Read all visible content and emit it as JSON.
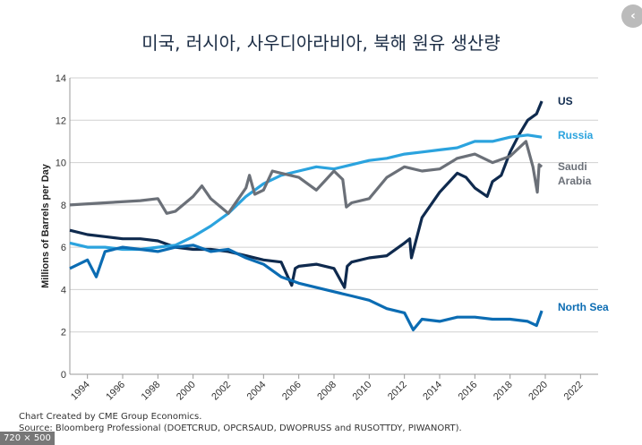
{
  "chart_data": {
    "type": "line",
    "title": "미국, 러시아, 사우디아라비아, 북해 원유 생산량",
    "xlabel": "",
    "ylabel": "Millions of Barrels per Day",
    "ylim": [
      0,
      14
    ],
    "xlim": [
      1993,
      2023
    ],
    "yticks": [
      "0",
      "2",
      "4",
      "6",
      "8",
      "10",
      "12",
      "14"
    ],
    "xticks": [
      "1994",
      "1996",
      "1998",
      "2000",
      "2002",
      "2004",
      "2006",
      "2008",
      "2010",
      "2012",
      "2014",
      "2016",
      "2018",
      "2020",
      "2022"
    ],
    "grid": true,
    "series": [
      {
        "name": "US",
        "color": "#0f2a4e",
        "label_lines": [
          "US"
        ],
        "x": [
          1993,
          1994,
          1995,
          1996,
          1997,
          1998,
          1999,
          2000,
          2001,
          2002,
          2003,
          2004,
          2005,
          2005.6,
          2005.8,
          2006,
          2007,
          2008,
          2008.6,
          2008.75,
          2009,
          2010,
          2011,
          2012,
          2012.3,
          2012.4,
          2013,
          2014,
          2015,
          2015.5,
          2016,
          2016.7,
          2017,
          2017.5,
          2018,
          2018.5,
          2019,
          2019.5,
          2019.8
        ],
        "y": [
          6.8,
          6.6,
          6.5,
          6.4,
          6.4,
          6.3,
          6.0,
          5.9,
          5.9,
          5.8,
          5.6,
          5.4,
          5.3,
          4.2,
          5.0,
          5.1,
          5.2,
          5.0,
          4.1,
          5.1,
          5.3,
          5.5,
          5.6,
          6.2,
          6.4,
          5.5,
          7.4,
          8.6,
          9.5,
          9.3,
          8.8,
          8.4,
          9.1,
          9.4,
          10.5,
          11.3,
          12.0,
          12.3,
          12.9
        ]
      },
      {
        "name": "Russia",
        "color": "#2ba3de",
        "label_lines": [
          "Russia"
        ],
        "x": [
          1993,
          1994,
          1995,
          1996,
          1997,
          1998,
          1999,
          2000,
          2001,
          2002,
          2003,
          2004,
          2005,
          2006,
          2007,
          2008,
          2009,
          2010,
          2011,
          2012,
          2013,
          2014,
          2015,
          2016,
          2017,
          2018,
          2019,
          2019.8
        ],
        "y": [
          6.2,
          6.0,
          6.0,
          5.9,
          5.9,
          6.0,
          6.1,
          6.5,
          7.0,
          7.6,
          8.4,
          9.0,
          9.4,
          9.6,
          9.8,
          9.7,
          9.9,
          10.1,
          10.2,
          10.4,
          10.5,
          10.6,
          10.7,
          11.0,
          11.0,
          11.2,
          11.3,
          11.2
        ]
      },
      {
        "name": "Saudi Arabia",
        "color": "#6b7078",
        "label_lines": [
          "Saudi",
          "Arabia"
        ],
        "x": [
          1993,
          1995,
          1997,
          1998,
          1998.5,
          1999,
          2000,
          2000.5,
          2001,
          2002,
          2003,
          2003.2,
          2003.5,
          2004,
          2004.5,
          2005,
          2006,
          2007,
          2008,
          2008.5,
          2008.7,
          2009,
          2010,
          2011,
          2012,
          2013,
          2014,
          2015,
          2016,
          2017,
          2018,
          2018.9,
          2019.3,
          2019.55,
          2019.65,
          2019.8
        ],
        "y": [
          8.0,
          8.1,
          8.2,
          8.3,
          7.6,
          7.7,
          8.4,
          8.9,
          8.3,
          7.6,
          8.8,
          9.4,
          8.5,
          8.7,
          9.6,
          9.5,
          9.3,
          8.7,
          9.6,
          9.2,
          7.9,
          8.1,
          8.3,
          9.3,
          9.8,
          9.6,
          9.7,
          10.2,
          10.4,
          10.0,
          10.3,
          11.0,
          9.8,
          8.6,
          9.9,
          9.8
        ]
      },
      {
        "name": "North Sea",
        "color": "#0b6cb3",
        "label_lines": [
          "North Sea"
        ],
        "x": [
          1993,
          1994,
          1994.5,
          1995,
          1996,
          1997,
          1998,
          1999,
          2000,
          2001,
          2002,
          2003,
          2004,
          2005,
          2006,
          2007,
          2008,
          2009,
          2010,
          2011,
          2012,
          2012.5,
          2013,
          2014,
          2015,
          2016,
          2017,
          2018,
          2019,
          2019.5,
          2019.8
        ],
        "y": [
          5.0,
          5.4,
          4.6,
          5.8,
          6.0,
          5.9,
          5.8,
          6.0,
          6.1,
          5.8,
          5.9,
          5.5,
          5.2,
          4.6,
          4.3,
          4.1,
          3.9,
          3.7,
          3.5,
          3.1,
          2.9,
          2.1,
          2.6,
          2.5,
          2.7,
          2.7,
          2.6,
          2.6,
          2.5,
          2.3,
          3.0
        ]
      }
    ]
  },
  "footer": {
    "line1": "Chart Created by CME Group Economics.",
    "line2": "Source:  Bloomberg Professional (DOETCRUD, OPCRSAUD, DWOPRUSS and RUSOTTDY, PIWANORT)."
  },
  "badge": "720 × 500",
  "nav": {
    "icon": "chevron-left-icon",
    "glyph": "‹"
  }
}
